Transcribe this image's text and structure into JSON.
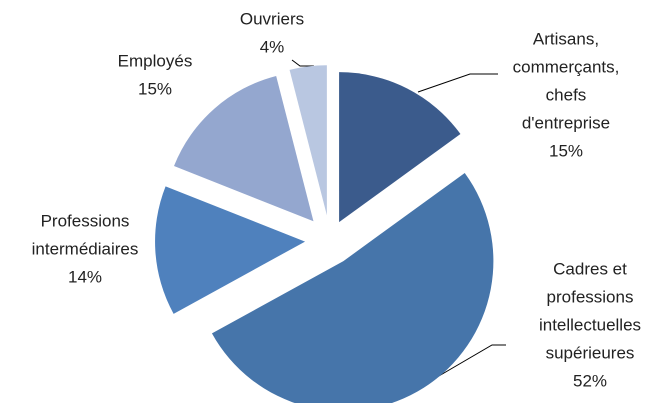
{
  "chart_data": {
    "type": "pie",
    "categories": [
      [
        "Artisans,",
        "commerçants,",
        "chefs",
        "d'entreprise"
      ],
      [
        "Cadres et",
        "professions",
        "intellectuelles",
        "supérieures"
      ],
      [
        "Professions",
        "intermédiaires"
      ],
      [
        "Employés"
      ],
      [
        "Ouvriers"
      ]
    ],
    "values": [
      15,
      52,
      14,
      15,
      4
    ],
    "value_labels": [
      "15%",
      "52%",
      "14%",
      "15%",
      "4%"
    ],
    "colors": [
      "#3b5b8c",
      "#4675aa",
      "#4f81bd",
      "#94a7cf",
      "#b9c7e1"
    ]
  }
}
